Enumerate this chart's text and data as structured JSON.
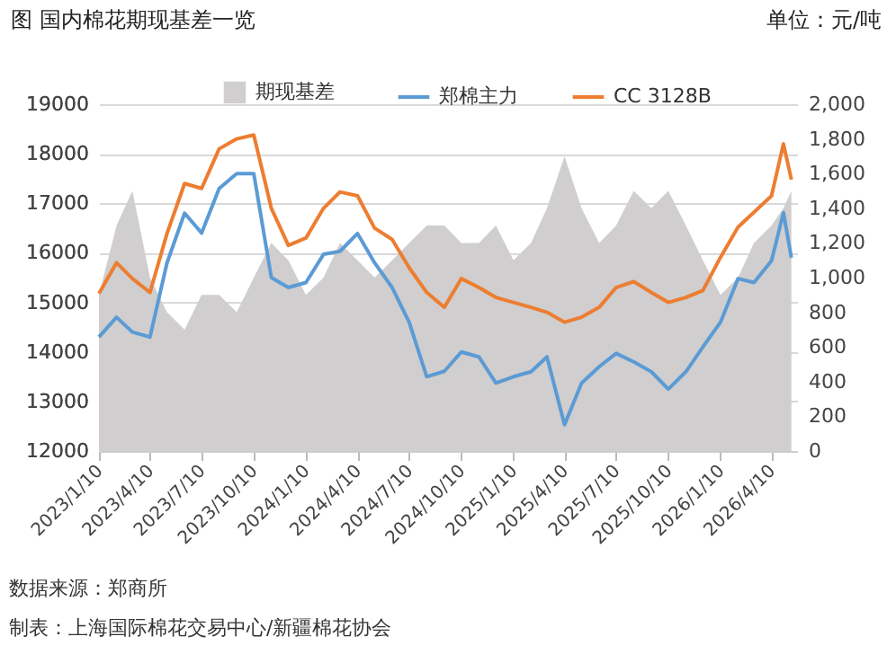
{
  "chart_data": {
    "type": "line",
    "title": "图 国内棉花期现基差一览",
    "annotations": [
      "单位：元/吨",
      "数据来源：郑商所",
      "制表：上海国际棉花交易中心/新疆棉花协会"
    ],
    "x": [
      "2023-01-10",
      "2023-02-10",
      "2023-03-10",
      "2023-04-10",
      "2023-05-10",
      "2023-06-10",
      "2023-07-10",
      "2023-08-10",
      "2023-09-10",
      "2023-10-10",
      "2023-11-10",
      "2023-12-10",
      "2024-01-10",
      "2024-02-10",
      "2024-03-10",
      "2024-04-10",
      "2024-05-10",
      "2024-06-10",
      "2024-07-10",
      "2024-08-10",
      "2024-09-10",
      "2024-10-10",
      "2024-11-10",
      "2024-12-10",
      "2025-01-10",
      "2025-02-10",
      "2025-03-10",
      "2025-04-10",
      "2025-05-10",
      "2025-06-10",
      "2025-07-10",
      "2025-08-10",
      "2025-09-10",
      "2025-10-10",
      "2025-11-10",
      "2025-12-10",
      "2026-01-10",
      "2026-02-10",
      "2026-03-10",
      "2026-04-10",
      "2026-05-01",
      "2026-05-15"
    ],
    "series": [
      {
        "name": "期现基差",
        "type": "area",
        "axis": "y2",
        "color": "#d0cece",
        "values": [
          900,
          1300,
          1500,
          1000,
          800,
          700,
          900,
          900,
          800,
          1000,
          1200,
          1100,
          900,
          1000,
          1200,
          1100,
          1000,
          1100,
          1200,
          1300,
          1300,
          1200,
          1200,
          1300,
          1100,
          1200,
          1400,
          1700,
          1400,
          1200,
          1300,
          1500,
          1400,
          1500,
          1300,
          1100,
          900,
          1000,
          1200,
          1300,
          1400,
          1500
        ]
      },
      {
        "name": "郑棉主力",
        "color": "#5b9bd5",
        "values": [
          14300,
          14700,
          14400,
          14300,
          15800,
          16800,
          16400,
          17300,
          17600,
          17600,
          15500,
          15300,
          15400,
          15970,
          16030,
          16390,
          15800,
          15300,
          14600,
          13500,
          13610,
          14000,
          13900,
          13370,
          13500,
          13600,
          13900,
          12530,
          13370,
          13700,
          13970,
          13800,
          13600,
          13250,
          13600,
          14100,
          14600,
          15480,
          15400,
          15840,
          16810,
          15900
        ]
      },
      {
        "name": "CC 3128B",
        "color": "#ed7d31",
        "values": [
          15180,
          15800,
          15480,
          15200,
          16390,
          17400,
          17300,
          18100,
          18300,
          18380,
          16900,
          16150,
          16300,
          16900,
          17230,
          17150,
          16500,
          16270,
          15700,
          15200,
          14900,
          15480,
          15300,
          15100,
          15000,
          14900,
          14800,
          14600,
          14700,
          14900,
          15300,
          15420,
          15200,
          15000,
          15100,
          15240,
          15910,
          16520,
          16820,
          17150,
          18200,
          17480
        ]
      }
    ],
    "xlim": [
      "2023-01-10",
      "2026-05-25"
    ],
    "xticks": [
      {
        "value": "2023-01-10",
        "label": "2023/1/10"
      },
      {
        "value": "2023-04-10",
        "label": "2023/4/10"
      },
      {
        "value": "2023-07-10",
        "label": "2023/7/10"
      },
      {
        "value": "2023-10-10",
        "label": "2023/10/10"
      },
      {
        "value": "2024-01-10",
        "label": "2024/1/10"
      },
      {
        "value": "2024-04-10",
        "label": "2024/4/10"
      },
      {
        "value": "2024-07-10",
        "label": "2024/7/10"
      },
      {
        "value": "2024-10-10",
        "label": "2024/10/10"
      },
      {
        "value": "2025-01-10",
        "label": "2025/1/10"
      },
      {
        "value": "2025-04-10",
        "label": "2025/4/10"
      },
      {
        "value": "2025-07-10",
        "label": "2025/7/10"
      },
      {
        "value": "2025-10-10",
        "label": "2025/10/10"
      },
      {
        "value": "2026-01-10",
        "label": "2026/1/10"
      },
      {
        "value": "2026-04-10",
        "label": "2026/4/10"
      }
    ],
    "ylim": [
      12000,
      19000
    ],
    "yticks": [
      12000,
      13000,
      14000,
      15000,
      16000,
      17000,
      18000,
      19000
    ],
    "y2lim": [
      0,
      2000
    ],
    "y2ticks": [
      0,
      200,
      400,
      600,
      800,
      {
        "value": 1000,
        "label": "1,000"
      },
      {
        "value": 1200,
        "label": "1,200"
      },
      {
        "value": 1400,
        "label": "1,400"
      },
      {
        "value": 1600,
        "label": "1,600"
      },
      {
        "value": 1800,
        "label": "1,800"
      },
      {
        "value": 2000,
        "label": "2,000"
      }
    ],
    "grid": "y",
    "legend": "top"
  }
}
